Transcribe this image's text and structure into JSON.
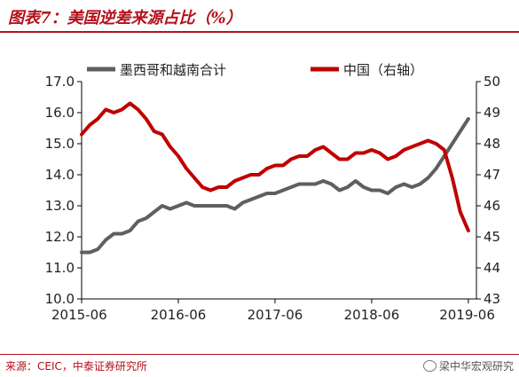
{
  "figure_title": "图表7：美国逆差来源占比（%）",
  "source_note": "来源：CEIC，中泰证券研究所",
  "watermark": "梁中华宏观研究",
  "colors": {
    "accent": "#b4101b",
    "mexico_vietnam": "#5f5f5f",
    "china": "#c00000"
  },
  "chart_data": {
    "type": "line",
    "legend_position": "top",
    "grid": false,
    "x_ticks": [
      "2015-06",
      "2016-06",
      "2017-06",
      "2018-06",
      "2019-06"
    ],
    "xlim": [
      "2015-06",
      "2019-07"
    ],
    "ylim_left": [
      10.0,
      17.0
    ],
    "ylim_right": [
      43,
      50
    ],
    "y_ticks_left": [
      "17.0",
      "16.0",
      "15.0",
      "14.0",
      "13.0",
      "12.0",
      "11.0",
      "10.0"
    ],
    "y_ticks_right": [
      "50",
      "49",
      "48",
      "47",
      "46",
      "45",
      "44",
      "43"
    ],
    "series": [
      {
        "name": "墨西哥和越南合计",
        "axis": "left",
        "color": "#5f5f5f",
        "x": [
          "2015-06",
          "2015-07",
          "2015-08",
          "2015-09",
          "2015-10",
          "2015-11",
          "2015-12",
          "2016-01",
          "2016-02",
          "2016-03",
          "2016-04",
          "2016-05",
          "2016-06",
          "2016-07",
          "2016-08",
          "2016-09",
          "2016-10",
          "2016-11",
          "2016-12",
          "2017-01",
          "2017-02",
          "2017-03",
          "2017-04",
          "2017-05",
          "2017-06",
          "2017-07",
          "2017-08",
          "2017-09",
          "2017-10",
          "2017-11",
          "2017-12",
          "2018-01",
          "2018-02",
          "2018-03",
          "2018-04",
          "2018-05",
          "2018-06",
          "2018-07",
          "2018-08",
          "2018-09",
          "2018-10",
          "2018-11",
          "2018-12",
          "2019-01",
          "2019-02",
          "2019-03",
          "2019-04",
          "2019-05",
          "2019-06"
        ],
        "y": [
          11.5,
          11.5,
          11.6,
          11.9,
          12.1,
          12.1,
          12.2,
          12.5,
          12.6,
          12.8,
          13.0,
          12.9,
          13.0,
          13.1,
          13.0,
          13.0,
          13.0,
          13.0,
          13.0,
          12.9,
          13.1,
          13.2,
          13.3,
          13.4,
          13.4,
          13.5,
          13.6,
          13.7,
          13.7,
          13.7,
          13.8,
          13.7,
          13.5,
          13.6,
          13.8,
          13.6,
          13.5,
          13.5,
          13.4,
          13.6,
          13.7,
          13.6,
          13.7,
          13.9,
          14.2,
          14.6,
          15.0,
          15.4,
          15.8
        ]
      },
      {
        "name": "中国（右轴）",
        "axis": "right",
        "color": "#c00000",
        "x": [
          "2015-06",
          "2015-07",
          "2015-08",
          "2015-09",
          "2015-10",
          "2015-11",
          "2015-12",
          "2016-01",
          "2016-02",
          "2016-03",
          "2016-04",
          "2016-05",
          "2016-06",
          "2016-07",
          "2016-08",
          "2016-09",
          "2016-10",
          "2016-11",
          "2016-12",
          "2017-01",
          "2017-02",
          "2017-03",
          "2017-04",
          "2017-05",
          "2017-06",
          "2017-07",
          "2017-08",
          "2017-09",
          "2017-10",
          "2017-11",
          "2017-12",
          "2018-01",
          "2018-02",
          "2018-03",
          "2018-04",
          "2018-05",
          "2018-06",
          "2018-07",
          "2018-08",
          "2018-09",
          "2018-10",
          "2018-11",
          "2018-12",
          "2019-01",
          "2019-02",
          "2019-03",
          "2019-04",
          "2019-05",
          "2019-06"
        ],
        "y": [
          48.3,
          48.6,
          48.8,
          49.1,
          49.0,
          49.1,
          49.3,
          49.1,
          48.8,
          48.4,
          48.3,
          47.9,
          47.6,
          47.2,
          46.9,
          46.6,
          46.5,
          46.6,
          46.6,
          46.8,
          46.9,
          47.0,
          47.0,
          47.2,
          47.3,
          47.3,
          47.5,
          47.6,
          47.6,
          47.8,
          47.9,
          47.7,
          47.5,
          47.5,
          47.7,
          47.7,
          47.8,
          47.7,
          47.5,
          47.6,
          47.8,
          47.9,
          48.0,
          48.1,
          48.0,
          47.8,
          46.9,
          45.8,
          45.2
        ]
      }
    ]
  }
}
